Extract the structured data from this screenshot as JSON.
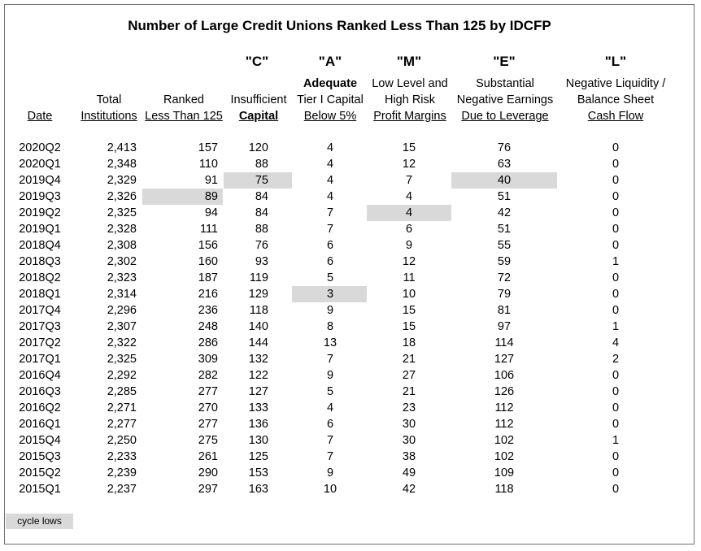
{
  "chart_data": {
    "type": "table",
    "title": "Number of Large Credit Unions Ranked Less Than 125 by IDCFP",
    "letters": [
      "\"C\"",
      "\"A\"",
      "\"M\"",
      "\"E\"",
      "\"L\""
    ],
    "headers": {
      "date": "Date",
      "total": [
        "Total",
        "Institutions"
      ],
      "ranked": [
        "Ranked",
        "Less Than 125"
      ],
      "c": [
        "Insufficient",
        "Capital"
      ],
      "a": [
        "Adequate",
        "Tier I Capital",
        "Below 5%"
      ],
      "m": [
        "Low Level and",
        "High Risk",
        "Profit Margins"
      ],
      "e": [
        "Substantial",
        "Negative Earnings",
        "Due to Leverage"
      ],
      "l": [
        "Negative Liquidity /",
        "Balance Sheet",
        "Cash Flow"
      ]
    },
    "columns": [
      "date",
      "total",
      "ranked",
      "c",
      "a",
      "m",
      "e",
      "l"
    ],
    "rows": [
      {
        "date": "2020Q2",
        "total": "2,413",
        "ranked": "157",
        "c": "120",
        "a": "4",
        "m": "15",
        "e": "76",
        "l": "0"
      },
      {
        "date": "2020Q1",
        "total": "2,348",
        "ranked": "110",
        "c": "88",
        "a": "4",
        "m": "12",
        "e": "63",
        "l": "0"
      },
      {
        "date": "2019Q4",
        "total": "2,329",
        "ranked": "91",
        "c": "75",
        "a": "4",
        "m": "7",
        "e": "40",
        "l": "0"
      },
      {
        "date": "2019Q3",
        "total": "2,326",
        "ranked": "89",
        "c": "84",
        "a": "4",
        "m": "4",
        "e": "51",
        "l": "0"
      },
      {
        "date": "2019Q2",
        "total": "2,325",
        "ranked": "94",
        "c": "84",
        "a": "7",
        "m": "4",
        "e": "42",
        "l": "0"
      },
      {
        "date": "2019Q1",
        "total": "2,328",
        "ranked": "111",
        "c": "88",
        "a": "7",
        "m": "6",
        "e": "51",
        "l": "0"
      },
      {
        "date": "2018Q4",
        "total": "2,308",
        "ranked": "156",
        "c": "76",
        "a": "6",
        "m": "9",
        "e": "55",
        "l": "0"
      },
      {
        "date": "2018Q3",
        "total": "2,302",
        "ranked": "160",
        "c": "93",
        "a": "6",
        "m": "12",
        "e": "59",
        "l": "1"
      },
      {
        "date": "2018Q2",
        "total": "2,323",
        "ranked": "187",
        "c": "119",
        "a": "5",
        "m": "11",
        "e": "72",
        "l": "0"
      },
      {
        "date": "2018Q1",
        "total": "2,314",
        "ranked": "216",
        "c": "129",
        "a": "3",
        "m": "10",
        "e": "79",
        "l": "0"
      },
      {
        "date": "2017Q4",
        "total": "2,296",
        "ranked": "236",
        "c": "118",
        "a": "9",
        "m": "15",
        "e": "81",
        "l": "0"
      },
      {
        "date": "2017Q3",
        "total": "2,307",
        "ranked": "248",
        "c": "140",
        "a": "8",
        "m": "15",
        "e": "97",
        "l": "1"
      },
      {
        "date": "2017Q2",
        "total": "2,322",
        "ranked": "286",
        "c": "144",
        "a": "13",
        "m": "18",
        "e": "114",
        "l": "4"
      },
      {
        "date": "2017Q1",
        "total": "2,325",
        "ranked": "309",
        "c": "132",
        "a": "7",
        "m": "21",
        "e": "127",
        "l": "2"
      },
      {
        "date": "2016Q4",
        "total": "2,292",
        "ranked": "282",
        "c": "122",
        "a": "9",
        "m": "27",
        "e": "106",
        "l": "0"
      },
      {
        "date": "2016Q3",
        "total": "2,285",
        "ranked": "277",
        "c": "127",
        "a": "5",
        "m": "21",
        "e": "126",
        "l": "0"
      },
      {
        "date": "2016Q2",
        "total": "2,271",
        "ranked": "270",
        "c": "133",
        "a": "4",
        "m": "23",
        "e": "112",
        "l": "0"
      },
      {
        "date": "2016Q1",
        "total": "2,277",
        "ranked": "277",
        "c": "136",
        "a": "6",
        "m": "30",
        "e": "112",
        "l": "0"
      },
      {
        "date": "2015Q4",
        "total": "2,250",
        "ranked": "275",
        "c": "130",
        "a": "7",
        "m": "30",
        "e": "102",
        "l": "1"
      },
      {
        "date": "2015Q3",
        "total": "2,233",
        "ranked": "261",
        "c": "125",
        "a": "7",
        "m": "38",
        "e": "102",
        "l": "0"
      },
      {
        "date": "2015Q2",
        "total": "2,239",
        "ranked": "290",
        "c": "153",
        "a": "9",
        "m": "49",
        "e": "109",
        "l": "0"
      },
      {
        "date": "2015Q1",
        "total": "2,237",
        "ranked": "297",
        "c": "163",
        "a": "10",
        "m": "42",
        "e": "118",
        "l": "0"
      }
    ],
    "highlights": [
      {
        "row": 2,
        "col": "c"
      },
      {
        "row": 2,
        "col": "e"
      },
      {
        "row": 3,
        "col": "ranked"
      },
      {
        "row": 4,
        "col": "m"
      },
      {
        "row": 9,
        "col": "a"
      }
    ],
    "legend": {
      "label": "cycle lows",
      "color": "#d9d9d9"
    }
  }
}
